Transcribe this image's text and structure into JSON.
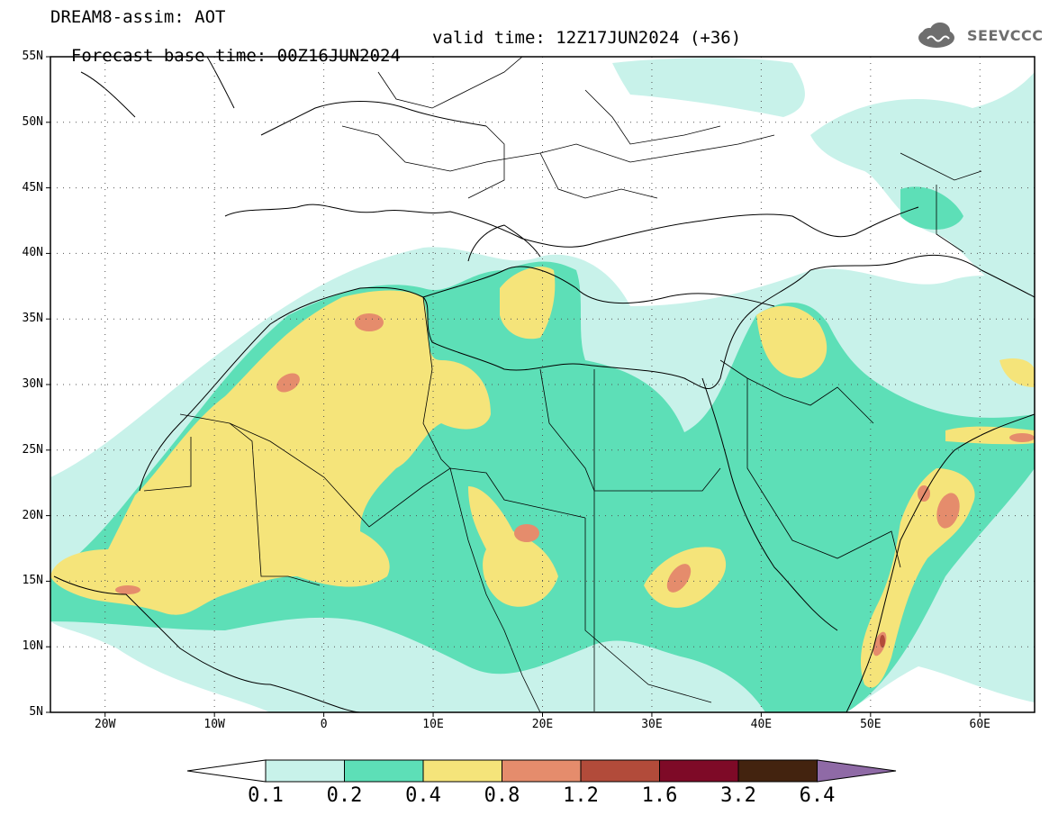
{
  "header": {
    "line1": "DREAM8-assim: AOT",
    "base_time": "Forecast base time: 00Z16JUN2024",
    "valid_time": "valid time: 12Z17JUN2024 (+36)"
  },
  "logo": {
    "text": "SEEVCCC"
  },
  "map": {
    "projection": "lat-lon",
    "lon_range": [
      -25,
      65
    ],
    "lat_range": [
      5,
      55
    ],
    "gridlines": "dotted",
    "lat_labels": [
      "55N",
      "50N",
      "45N",
      "40N",
      "35N",
      "30N",
      "25N",
      "20N",
      "15N",
      "10N",
      "5N"
    ],
    "lon_labels": [
      "20W",
      "10W",
      "0",
      "10E",
      "20E",
      "30E",
      "40E",
      "50E",
      "60E"
    ]
  },
  "colorbar": {
    "levels": [
      "0.1",
      "0.2",
      "0.4",
      "0.8",
      "1.2",
      "1.6",
      "3.2",
      "6.4"
    ],
    "colors": [
      "#c8f2ea",
      "#5ddfb7",
      "#f5e47a",
      "#e58c6c",
      "#b24b3a",
      "#7e0a27",
      "#43230f",
      "#8f6aa6"
    ],
    "low_extend_color": "#ffffff"
  }
}
